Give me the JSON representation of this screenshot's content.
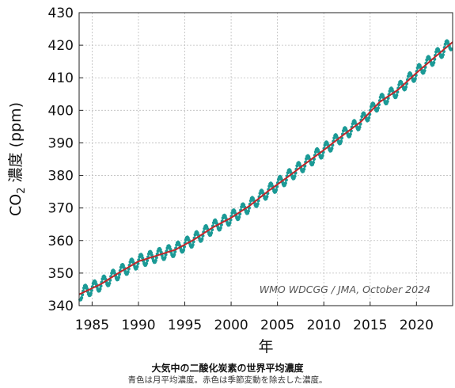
{
  "chart_data": {
    "type": "line",
    "title": "大気中の二酸化炭素の世界平均濃度",
    "subtitle": "青色は月平均濃度。赤色は季節変動を除去した濃度。",
    "xlabel": "年",
    "ylabel_main": "CO",
    "ylabel_sub": "2",
    "ylabel_rest": " 濃度 (ppm)",
    "credit": "WMO WDCGG / JMA, October 2024",
    "xlim": [
      1983.6,
      2023.9
    ],
    "ylim": [
      340,
      430
    ],
    "xticks": [
      1985,
      1990,
      1995,
      2000,
      2005,
      2010,
      2015,
      2020
    ],
    "xtick_labels": [
      "1985",
      "1990",
      "1995",
      "2000",
      "2005",
      "2010",
      "2015",
      "2020"
    ],
    "yticks": [
      340,
      350,
      360,
      370,
      380,
      390,
      400,
      410,
      420,
      430
    ],
    "ytick_labels": [
      "340",
      "350",
      "360",
      "370",
      "380",
      "390",
      "400",
      "410",
      "420",
      "430"
    ],
    "grid": true,
    "colors": {
      "monthly": "#1b9a96",
      "trend": "#c0262a"
    },
    "series": [
      {
        "role": "monthly-mean",
        "x": [
          1984,
          1986,
          1988,
          1990,
          1992,
          1994,
          1996,
          1998,
          2000,
          2002,
          2004,
          2006,
          2008,
          2010,
          2012,
          2014,
          2016,
          2018,
          2020,
          2022,
          2023.5
        ],
        "y": [
          344.0,
          346.7,
          350.3,
          353.6,
          355.4,
          357.2,
          360.3,
          364.0,
          367.0,
          370.7,
          375.2,
          379.3,
          383.6,
          387.8,
          392.2,
          396.5,
          402.5,
          406.3,
          411.5,
          416.4,
          420.0
        ],
        "seasonal_amplitude": 1.9
      },
      {
        "role": "deseasonalized",
        "x": [
          1984,
          1986,
          1988,
          1990,
          1992,
          1994,
          1996,
          1998,
          2000,
          2002,
          2004,
          2006,
          2008,
          2010,
          2012,
          2014,
          2016,
          2018,
          2020,
          2022,
          2023.5
        ],
        "y": [
          344.0,
          346.7,
          350.3,
          353.6,
          355.4,
          357.2,
          360.3,
          364.0,
          367.0,
          370.7,
          375.2,
          379.3,
          383.6,
          387.8,
          392.2,
          396.5,
          402.5,
          406.3,
          411.5,
          416.4,
          420.0
        ]
      }
    ]
  }
}
